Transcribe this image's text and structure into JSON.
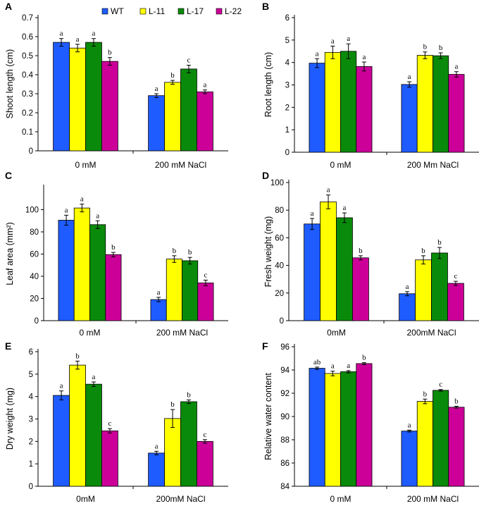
{
  "legend": [
    {
      "name": "WT",
      "color": "#1f5cff"
    },
    {
      "name": "L-11",
      "color": "#ffff00"
    },
    {
      "name": "L-17",
      "color": "#0a8a0a"
    },
    {
      "name": "L-22",
      "color": "#cc0099"
    }
  ],
  "chart_data": [
    {
      "id": "A",
      "type": "bar",
      "letter": "A",
      "ylabel": "Shoot length (cm)",
      "categories": [
        "0 mM",
        "200 mM NaCl"
      ],
      "ylim": [
        0,
        0.7
      ],
      "yticks": [
        0,
        0.1,
        0.2,
        0.3,
        0.4,
        0.5,
        0.6,
        0.7
      ],
      "series": [
        {
          "name": "WT",
          "values": [
            0.57,
            0.29
          ],
          "errors": [
            0.02,
            0.01
          ],
          "letters": [
            "a",
            "a"
          ]
        },
        {
          "name": "L-11",
          "values": [
            0.54,
            0.36
          ],
          "errors": [
            0.02,
            0.01
          ],
          "letters": [
            "a",
            "b"
          ]
        },
        {
          "name": "L-17",
          "values": [
            0.57,
            0.43
          ],
          "errors": [
            0.02,
            0.02
          ],
          "letters": [
            "a",
            "c"
          ]
        },
        {
          "name": "L-22",
          "values": [
            0.47,
            0.31
          ],
          "errors": [
            0.02,
            0.01
          ],
          "letters": [
            "b",
            "a"
          ]
        }
      ]
    },
    {
      "id": "B",
      "type": "bar",
      "letter": "B",
      "ylabel": "Root length (cm)",
      "categories": [
        "0 mM",
        "200 Mm NaCl"
      ],
      "ylim": [
        0,
        6
      ],
      "yticks": [
        0,
        1,
        2,
        3,
        4,
        5,
        6
      ],
      "series": [
        {
          "name": "WT",
          "values": [
            3.97,
            3.02
          ],
          "errors": [
            0.2,
            0.12
          ],
          "letters": [
            "a",
            "a"
          ]
        },
        {
          "name": "L-11",
          "values": [
            4.45,
            4.32
          ],
          "errors": [
            0.28,
            0.15
          ],
          "letters": [
            "a",
            "b"
          ]
        },
        {
          "name": "L-17",
          "values": [
            4.5,
            4.3
          ],
          "errors": [
            0.33,
            0.13
          ],
          "letters": [
            "a",
            "b"
          ]
        },
        {
          "name": "L-22",
          "values": [
            3.82,
            3.47
          ],
          "errors": [
            0.2,
            0.12
          ],
          "letters": [
            "a",
            "a"
          ]
        }
      ]
    },
    {
      "id": "C",
      "type": "bar",
      "letter": "C",
      "ylabel": "Leaf area (mm²)",
      "categories": [
        "0 mM",
        "200 mM NaCl"
      ],
      "ylim": [
        0,
        120
      ],
      "yticks": [
        0,
        20,
        40,
        60,
        80,
        100
      ],
      "series": [
        {
          "name": "WT",
          "values": [
            90.5,
            19
          ],
          "errors": [
            4.5,
            2
          ],
          "letters": [
            "a",
            "a"
          ]
        },
        {
          "name": "L-11",
          "values": [
            101.5,
            55.5
          ],
          "errors": [
            3.5,
            3
          ],
          "letters": [
            "a",
            "b"
          ]
        },
        {
          "name": "L-17",
          "values": [
            86.5,
            54
          ],
          "errors": [
            3.5,
            3
          ],
          "letters": [
            "a",
            "b"
          ]
        },
        {
          "name": "L-22",
          "values": [
            59.5,
            34
          ],
          "errors": [
            2,
            2.5
          ],
          "letters": [
            "b",
            "c"
          ]
        }
      ]
    },
    {
      "id": "D",
      "type": "bar",
      "letter": "D",
      "ylabel": "Fresh weight (mg)",
      "categories": [
        "0mM",
        "200mM NaCl"
      ],
      "ylim": [
        0,
        100
      ],
      "yticks": [
        0,
        20,
        40,
        60,
        80,
        100
      ],
      "series": [
        {
          "name": "WT",
          "values": [
            70,
            19.5
          ],
          "errors": [
            4,
            1.5
          ],
          "letters": [
            "a",
            "a"
          ]
        },
        {
          "name": "L-11",
          "values": [
            86,
            44
          ],
          "errors": [
            5,
            3
          ],
          "letters": [
            "a",
            "b"
          ]
        },
        {
          "name": "L-17",
          "values": [
            74.5,
            49
          ],
          "errors": [
            3.5,
            4
          ],
          "letters": [
            "a",
            "b"
          ]
        },
        {
          "name": "L-22",
          "values": [
            45.5,
            27
          ],
          "errors": [
            1.5,
            1.5
          ],
          "letters": [
            "b",
            "c"
          ]
        }
      ]
    },
    {
      "id": "E",
      "type": "bar",
      "letter": "E",
      "ylabel": "Dry weight (mg)",
      "categories": [
        "0mM",
        "200mM NaCl"
      ],
      "ylim": [
        0,
        6
      ],
      "yticks": [
        0,
        1,
        2,
        3,
        4,
        5,
        6
      ],
      "series": [
        {
          "name": "WT",
          "values": [
            4.05,
            1.48
          ],
          "errors": [
            0.2,
            0.08
          ],
          "letters": [
            "a",
            "a"
          ]
        },
        {
          "name": "L-11",
          "values": [
            5.4,
            3.02
          ],
          "errors": [
            0.18,
            0.4
          ],
          "letters": [
            "b",
            "b"
          ]
        },
        {
          "name": "L-17",
          "values": [
            4.55,
            3.77
          ],
          "errors": [
            0.1,
            0.08
          ],
          "letters": [
            "a",
            "b"
          ]
        },
        {
          "name": "L-22",
          "values": [
            2.47,
            2.0
          ],
          "errors": [
            0.1,
            0.08
          ],
          "letters": [
            "c",
            "c"
          ]
        }
      ]
    },
    {
      "id": "F",
      "type": "bar",
      "letter": "F",
      "ylabel": "Relative water content",
      "categories": [
        "0 mM",
        "200 mM NaCl"
      ],
      "ylim": [
        84,
        96
      ],
      "yticks": [
        84,
        86,
        88,
        90,
        92,
        94,
        96
      ],
      "series": [
        {
          "name": "WT",
          "values": [
            94.15,
            88.75
          ],
          "errors": [
            0.1,
            0.08
          ],
          "letters": [
            "ab",
            "a"
          ]
        },
        {
          "name": "L-11",
          "values": [
            93.7,
            91.3
          ],
          "errors": [
            0.2,
            0.2
          ],
          "letters": [
            "a",
            "b"
          ]
        },
        {
          "name": "L-17",
          "values": [
            93.85,
            92.25
          ],
          "errors": [
            0.1,
            0.07
          ],
          "letters": [
            "a",
            "c"
          ]
        },
        {
          "name": "L-22",
          "values": [
            94.55,
            90.8
          ],
          "errors": [
            0.08,
            0.08
          ],
          "letters": [
            "b",
            "b"
          ]
        }
      ]
    }
  ]
}
